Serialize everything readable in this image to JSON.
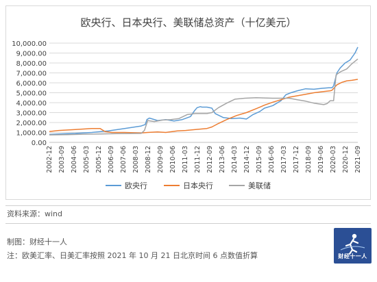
{
  "chart_data": {
    "type": "line",
    "title": "欧央行、日本央行、美联储总资产（十亿美元）",
    "ylim": [
      0,
      10000
    ],
    "yticks": [
      0,
      1000,
      2000,
      3000,
      4000,
      5000,
      6000,
      7000,
      8000,
      9000,
      10000
    ],
    "ytick_labels": [
      "0.00",
      "1,000.00",
      "2,000.00",
      "3,000.00",
      "4,000.00",
      "5,000.00",
      "6,000.00",
      "7,000.00",
      "8,000.00",
      "9,000.00",
      "10,000.00"
    ],
    "xlim": [
      2002.92,
      2021.67
    ],
    "xtick_labels": [
      "2002-12",
      "2003-09",
      "2004-06",
      "2005-03",
      "2005-12",
      "2006-09",
      "2007-06",
      "2008-03",
      "2008-12",
      "2009-09",
      "2010-06",
      "2011-03",
      "2011-12",
      "2012-09",
      "2013-06",
      "2014-03",
      "2014-12",
      "2015-09",
      "2016-06",
      "2017-03",
      "2017-12",
      "2018-09",
      "2019-06",
      "2020-03",
      "2020-12",
      "2021-09"
    ],
    "grid": true,
    "legend_position": "bottom",
    "series": [
      {
        "name": "欧央行",
        "color": "#5b9bd5",
        "x": [
          2002.92,
          2003.5,
          2004.5,
          2005.5,
          2006.5,
          2007.5,
          2008.5,
          2008.75,
          2008.85,
          2009.0,
          2009.5,
          2010.0,
          2010.5,
          2011.0,
          2011.5,
          2011.75,
          2011.9,
          2012.1,
          2012.2,
          2012.5,
          2012.8,
          2013.0,
          2013.5,
          2014.0,
          2014.5,
          2014.9,
          2015.3,
          2015.7,
          2016.0,
          2016.5,
          2017.0,
          2017.3,
          2017.6,
          2018.0,
          2018.5,
          2019.0,
          2019.5,
          2019.9,
          2020.1,
          2020.2,
          2020.4,
          2020.6,
          2020.9,
          2021.2,
          2021.5,
          2021.67
        ],
        "y": [
          800,
          850,
          900,
          1000,
          1150,
          1400,
          1650,
          1800,
          2300,
          2450,
          2200,
          2300,
          2150,
          2300,
          2600,
          3200,
          3500,
          3600,
          3550,
          3550,
          3450,
          2900,
          2500,
          2400,
          2450,
          2350,
          2800,
          3100,
          3450,
          3700,
          4200,
          4800,
          5000,
          5200,
          5400,
          5350,
          5450,
          5500,
          5500,
          5700,
          7000,
          7500,
          8000,
          8300,
          9000,
          9600
        ]
      },
      {
        "name": "日本央行",
        "color": "#ed7d31",
        "x": [
          2002.92,
          2003.5,
          2004.5,
          2005.5,
          2006.0,
          2006.3,
          2006.7,
          2007.5,
          2008.5,
          2008.9,
          2009.5,
          2010.0,
          2010.7,
          2011.2,
          2011.8,
          2012.5,
          2012.8,
          2013.2,
          2013.7,
          2014.3,
          2014.9,
          2015.5,
          2016.0,
          2016.5,
          2017.0,
          2017.5,
          2018.0,
          2018.5,
          2019.0,
          2019.5,
          2020.0,
          2020.1,
          2020.4,
          2020.7,
          2021.0,
          2021.3,
          2021.67
        ],
        "y": [
          1100,
          1200,
          1300,
          1400,
          1400,
          1100,
          1000,
          1000,
          950,
          1000,
          1050,
          1000,
          1150,
          1200,
          1300,
          1400,
          1550,
          1900,
          2300,
          2700,
          3000,
          3400,
          3750,
          4050,
          4300,
          4550,
          4700,
          4850,
          5000,
          5100,
          5200,
          5250,
          5800,
          6050,
          6200,
          6250,
          6350
        ]
      },
      {
        "name": "美联储",
        "color": "#a5a5a5",
        "x": [
          2002.92,
          2004.0,
          2005.0,
          2006.0,
          2007.0,
          2008.5,
          2008.7,
          2008.9,
          2009.3,
          2009.8,
          2010.3,
          2010.8,
          2011.3,
          2011.8,
          2012.5,
          2012.8,
          2013.2,
          2013.7,
          2014.2,
          2014.8,
          2015.5,
          2016.5,
          2017.5,
          2018.0,
          2018.5,
          2019.0,
          2019.6,
          2019.8,
          2020.0,
          2020.2,
          2020.35,
          2020.6,
          2021.0,
          2021.3,
          2021.67
        ],
        "y": [
          750,
          780,
          820,
          850,
          880,
          900,
          1200,
          2200,
          2100,
          2250,
          2300,
          2400,
          2800,
          2900,
          2900,
          3000,
          3500,
          3950,
          4350,
          4450,
          4500,
          4450,
          4450,
          4300,
          4150,
          3950,
          3800,
          3900,
          4200,
          4200,
          6800,
          7100,
          7400,
          7900,
          8400
        ]
      }
    ]
  },
  "legend_label_ecb": "欧央行",
  "legend_label_boj": "日本央行",
  "legend_label_fed": "美联储",
  "footer": {
    "source": "资料来源：wind",
    "author": "制图：财经十一人",
    "note": "注：欧美汇率、日美汇率按照 2021 年 10 月 21 日北京时间 6 点数值折算",
    "logo_text": "财经十一人"
  }
}
